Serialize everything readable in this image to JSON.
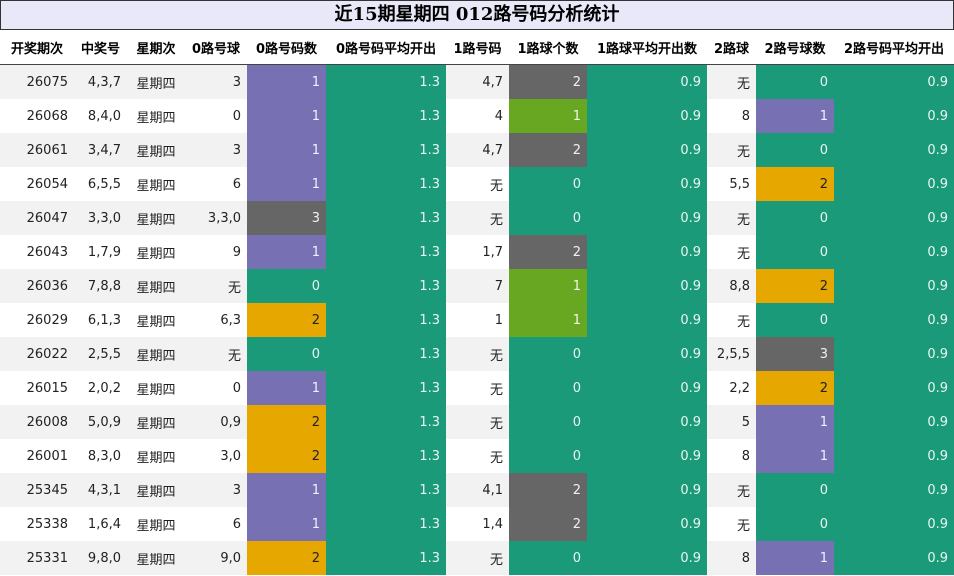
{
  "title": "近15期星期四 012路号码分析统计",
  "colors": {
    "teal": "#1a9a78",
    "purple": "#7771b4",
    "gray": "#666666",
    "orange": "#e5a700",
    "green": "#67a722"
  },
  "headers": [
    "开奖期次",
    "中奖号",
    "星期次",
    "0路号球",
    "0路号码数",
    "0路号码平均开出",
    "1路号码",
    "1路球个数",
    "1路球平均开出数",
    "2路球",
    "2路号球数",
    "2路号码平均开出"
  ],
  "rows": [
    {
      "issue": "26075",
      "nums": "4,3,7",
      "day": "星期四",
      "r0": "3",
      "r0n": "1",
      "r0avg": "1.3",
      "r1": "4,7",
      "r1n": "2",
      "r1avg": "0.9",
      "r2": "无",
      "r2n": "0",
      "r2avg": "0.9"
    },
    {
      "issue": "26068",
      "nums": "8,4,0",
      "day": "星期四",
      "r0": "0",
      "r0n": "1",
      "r0avg": "1.3",
      "r1": "4",
      "r1n": "1",
      "r1avg": "0.9",
      "r2": "8",
      "r2n": "1",
      "r2avg": "0.9"
    },
    {
      "issue": "26061",
      "nums": "3,4,7",
      "day": "星期四",
      "r0": "3",
      "r0n": "1",
      "r0avg": "1.3",
      "r1": "4,7",
      "r1n": "2",
      "r1avg": "0.9",
      "r2": "无",
      "r2n": "0",
      "r2avg": "0.9"
    },
    {
      "issue": "26054",
      "nums": "6,5,5",
      "day": "星期四",
      "r0": "6",
      "r0n": "1",
      "r0avg": "1.3",
      "r1": "无",
      "r1n": "0",
      "r1avg": "0.9",
      "r2": "5,5",
      "r2n": "2",
      "r2avg": "0.9"
    },
    {
      "issue": "26047",
      "nums": "3,3,0",
      "day": "星期四",
      "r0": "3,3,0",
      "r0n": "3",
      "r0avg": "1.3",
      "r1": "无",
      "r1n": "0",
      "r1avg": "0.9",
      "r2": "无",
      "r2n": "0",
      "r2avg": "0.9"
    },
    {
      "issue": "26043",
      "nums": "1,7,9",
      "day": "星期四",
      "r0": "9",
      "r0n": "1",
      "r0avg": "1.3",
      "r1": "1,7",
      "r1n": "2",
      "r1avg": "0.9",
      "r2": "无",
      "r2n": "0",
      "r2avg": "0.9"
    },
    {
      "issue": "26036",
      "nums": "7,8,8",
      "day": "星期四",
      "r0": "无",
      "r0n": "0",
      "r0avg": "1.3",
      "r1": "7",
      "r1n": "1",
      "r1avg": "0.9",
      "r2": "8,8",
      "r2n": "2",
      "r2avg": "0.9"
    },
    {
      "issue": "26029",
      "nums": "6,1,3",
      "day": "星期四",
      "r0": "6,3",
      "r0n": "2",
      "r0avg": "1.3",
      "r1": "1",
      "r1n": "1",
      "r1avg": "0.9",
      "r2": "无",
      "r2n": "0",
      "r2avg": "0.9"
    },
    {
      "issue": "26022",
      "nums": "2,5,5",
      "day": "星期四",
      "r0": "无",
      "r0n": "0",
      "r0avg": "1.3",
      "r1": "无",
      "r1n": "0",
      "r1avg": "0.9",
      "r2": "2,5,5",
      "r2n": "3",
      "r2avg": "0.9"
    },
    {
      "issue": "26015",
      "nums": "2,0,2",
      "day": "星期四",
      "r0": "0",
      "r0n": "1",
      "r0avg": "1.3",
      "r1": "无",
      "r1n": "0",
      "r1avg": "0.9",
      "r2": "2,2",
      "r2n": "2",
      "r2avg": "0.9"
    },
    {
      "issue": "26008",
      "nums": "5,0,9",
      "day": "星期四",
      "r0": "0,9",
      "r0n": "2",
      "r0avg": "1.3",
      "r1": "无",
      "r1n": "0",
      "r1avg": "0.9",
      "r2": "5",
      "r2n": "1",
      "r2avg": "0.9"
    },
    {
      "issue": "26001",
      "nums": "8,3,0",
      "day": "星期四",
      "r0": "3,0",
      "r0n": "2",
      "r0avg": "1.3",
      "r1": "无",
      "r1n": "0",
      "r1avg": "0.9",
      "r2": "8",
      "r2n": "1",
      "r2avg": "0.9"
    },
    {
      "issue": "25345",
      "nums": "4,3,1",
      "day": "星期四",
      "r0": "3",
      "r0n": "1",
      "r0avg": "1.3",
      "r1": "4,1",
      "r1n": "2",
      "r1avg": "0.9",
      "r2": "无",
      "r2n": "0",
      "r2avg": "0.9"
    },
    {
      "issue": "25338",
      "nums": "1,6,4",
      "day": "星期四",
      "r0": "6",
      "r0n": "1",
      "r0avg": "1.3",
      "r1": "1,4",
      "r1n": "2",
      "r1avg": "0.9",
      "r2": "无",
      "r2n": "0",
      "r2avg": "0.9"
    },
    {
      "issue": "25331",
      "nums": "9,8,0",
      "day": "星期四",
      "r0": "9,0",
      "r0n": "2",
      "r0avg": "1.3",
      "r1": "无",
      "r1n": "0",
      "r1avg": "0.9",
      "r2": "8",
      "r2n": "1",
      "r2avg": "0.9"
    }
  ]
}
